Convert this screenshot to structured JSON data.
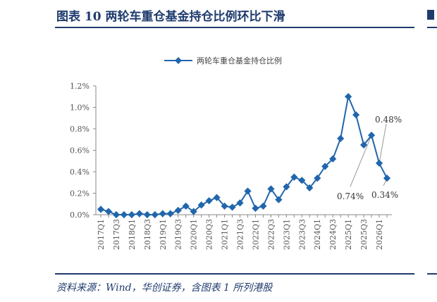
{
  "header": {
    "title": "图表 10    两轮车重仓基金持仓比例环比下滑"
  },
  "footer": {
    "source": "资料来源：Wind，华创证券，含图表 1 所列港股"
  },
  "colors": {
    "series": "#2166ac",
    "accent": "#1f3b6e"
  },
  "chart_data": {
    "type": "line",
    "legend": "top-center",
    "grid": false,
    "x": [
      "2017Q1",
      "2017Q2",
      "2017Q3",
      "2017Q4",
      "2018Q1",
      "2018Q2",
      "2018Q3",
      "2018Q4",
      "2019Q1",
      "2019Q2",
      "2019Q3",
      "2019Q4",
      "2020Q1",
      "2020Q2",
      "2020Q3",
      "2020Q4",
      "2021Q1",
      "2021Q2",
      "2021Q3",
      "2021Q4",
      "2022Q1",
      "2022Q2",
      "2022Q3",
      "2022Q4",
      "2023Q1",
      "2023Q2",
      "2023Q3",
      "2023Q4",
      "2024Q1",
      "2024Q2",
      "2024Q3",
      "2024Q4",
      "2025Q1",
      "2025Q2",
      "2025Q3",
      "2025Q4",
      "2026Q1",
      "2026Q2"
    ],
    "x_tick_labels": [
      "2017Q1",
      "2017Q3",
      "2018Q1",
      "2018Q3",
      "2019Q1",
      "2019Q3",
      "2020Q1",
      "2020Q3",
      "2021Q1",
      "2021Q3",
      "2022Q1",
      "2022Q3",
      "2023Q1",
      "2023Q3",
      "2024Q1",
      "2024Q3",
      "2025Q1",
      "2025Q3",
      "2026Q1"
    ],
    "series": [
      {
        "name": "两轮车重仓基金持仓比例",
        "values": [
          0.05,
          0.03,
          0.0,
          0.0,
          0.0,
          0.01,
          0.0,
          0.0,
          0.01,
          0.01,
          0.04,
          0.08,
          0.03,
          0.09,
          0.13,
          0.16,
          0.08,
          0.07,
          0.11,
          0.22,
          0.06,
          0.08,
          0.24,
          0.14,
          0.26,
          0.35,
          0.32,
          0.25,
          0.34,
          0.45,
          0.52,
          0.71,
          1.1,
          0.93,
          0.65,
          0.74,
          0.48,
          0.34
        ]
      }
    ],
    "ylim": [
      0,
      1.2
    ],
    "y_ticks": [
      "0.0%",
      "0.2%",
      "0.4%",
      "0.6%",
      "0.8%",
      "1.0%",
      "1.2%"
    ],
    "annotations": [
      {
        "text": "0.48%",
        "target": "2026Q1"
      },
      {
        "text": "0.74%",
        "target": "2025Q4"
      },
      {
        "text": "0.34%",
        "target": "2026Q2"
      }
    ]
  }
}
